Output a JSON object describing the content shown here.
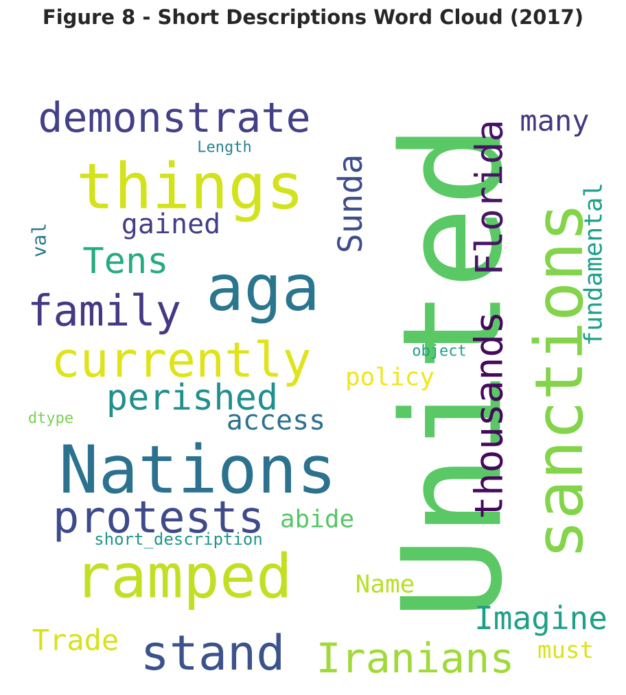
{
  "title": "Figure 8 - Short Descriptions Word Cloud (2017)",
  "chart_data": {
    "type": "wordcloud",
    "title": "Figure 8 - Short Descriptions Word Cloud (2017)",
    "colormap": "viridis",
    "background": "#ffffff",
    "words": [
      {
        "text": "United",
        "weight": 1.0,
        "color": "#5ac864",
        "orientation": "vertical"
      },
      {
        "text": "sanctions",
        "weight": 0.6,
        "color": "#84d44b",
        "orientation": "vertical"
      },
      {
        "text": "Nations",
        "weight": 0.6,
        "color": "#2c728e",
        "orientation": "horizontal"
      },
      {
        "text": "things",
        "weight": 0.58,
        "color": "#d2e21b",
        "orientation": "horizontal"
      },
      {
        "text": "aga",
        "weight": 0.58,
        "color": "#2a768e",
        "orientation": "horizontal"
      },
      {
        "text": "ramped",
        "weight": 0.56,
        "color": "#c2df23",
        "orientation": "horizontal"
      },
      {
        "text": "currently",
        "weight": 0.44,
        "color": "#dfe318",
        "orientation": "horizontal"
      },
      {
        "text": "stand",
        "weight": 0.44,
        "color": "#3b528b",
        "orientation": "horizontal"
      },
      {
        "text": "protests",
        "weight": 0.4,
        "color": "#3e4a89",
        "orientation": "horizontal"
      },
      {
        "text": "family",
        "weight": 0.38,
        "color": "#443983",
        "orientation": "horizontal"
      },
      {
        "text": "Iranians",
        "weight": 0.38,
        "color": "#a0da39",
        "orientation": "horizontal"
      },
      {
        "text": "demonstrate",
        "weight": 0.38,
        "color": "#424086",
        "orientation": "horizontal"
      },
      {
        "text": "thousands",
        "weight": 0.36,
        "color": "#46085c",
        "orientation": "vertical"
      },
      {
        "text": "Florida",
        "weight": 0.34,
        "color": "#471365",
        "orientation": "vertical"
      },
      {
        "text": "perished",
        "weight": 0.32,
        "color": "#21908d",
        "orientation": "horizontal"
      },
      {
        "text": "Tens",
        "weight": 0.32,
        "color": "#25ab82",
        "orientation": "horizontal"
      },
      {
        "text": "Sunda",
        "weight": 0.3,
        "color": "#3e4c8a",
        "orientation": "vertical"
      },
      {
        "text": "Imagine",
        "weight": 0.28,
        "color": "#1f9f88",
        "orientation": "horizontal"
      },
      {
        "text": "Trade",
        "weight": 0.26,
        "color": "#d8e219",
        "orientation": "horizontal"
      },
      {
        "text": "many",
        "weight": 0.26,
        "color": "#453781",
        "orientation": "horizontal"
      },
      {
        "text": "gained",
        "weight": 0.24,
        "color": "#433e85",
        "orientation": "horizontal"
      },
      {
        "text": "access",
        "weight": 0.24,
        "color": "#2d708e",
        "orientation": "horizontal"
      },
      {
        "text": "fundamental",
        "weight": 0.22,
        "color": "#1fa088",
        "orientation": "vertical"
      },
      {
        "text": "policy",
        "weight": 0.22,
        "color": "#f1e51d",
        "orientation": "horizontal"
      },
      {
        "text": "abide",
        "weight": 0.22,
        "color": "#56c667",
        "orientation": "horizontal"
      },
      {
        "text": "Name",
        "weight": 0.22,
        "color": "#b8de29",
        "orientation": "horizontal"
      },
      {
        "text": "must",
        "weight": 0.2,
        "color": "#dae319",
        "orientation": "horizontal"
      },
      {
        "text": "val",
        "weight": 0.18,
        "color": "#2a788e",
        "orientation": "vertical"
      },
      {
        "text": "short_description",
        "weight": 0.14,
        "color": "#1f968b",
        "orientation": "horizontal"
      },
      {
        "text": "object",
        "weight": 0.12,
        "color": "#1fa187",
        "orientation": "horizontal"
      },
      {
        "text": "Length",
        "weight": 0.12,
        "color": "#26828e",
        "orientation": "horizontal"
      },
      {
        "text": "dtype",
        "weight": 0.12,
        "color": "#7ad151",
        "orientation": "horizontal"
      }
    ]
  }
}
